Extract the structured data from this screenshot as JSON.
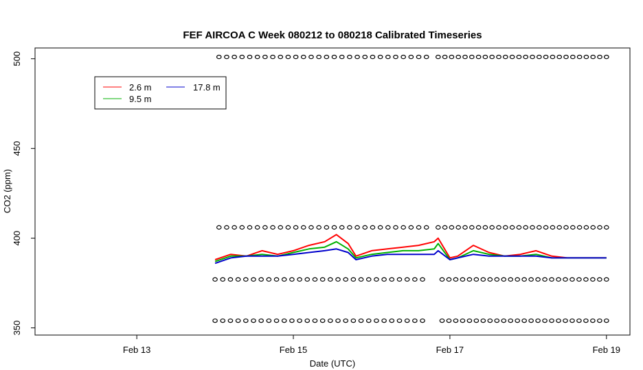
{
  "chart_data": {
    "type": "line",
    "title": "FEF AIRCOA C  Week 080212 to 080218  Calibrated Timeseries",
    "xlabel": "Date (UTC)",
    "ylabel": "CO2 (ppm)",
    "x_tick_labels": [
      "Feb 13",
      "Feb 15",
      "Feb 17",
      "Feb 19"
    ],
    "x_tick_values": [
      13,
      15,
      17,
      19
    ],
    "xlim": [
      11.7,
      19.3
    ],
    "y_tick_labels": [
      "350",
      "400",
      "450",
      "500"
    ],
    "y_tick_values": [
      350,
      400,
      450,
      500
    ],
    "ylim": [
      346,
      506
    ],
    "grid": false,
    "legend_position": "top-left",
    "series": [
      {
        "name": "2.6 m",
        "color": "#ff0000",
        "x": [
          14.0,
          14.2,
          14.4,
          14.6,
          14.8,
          15.0,
          15.2,
          15.4,
          15.55,
          15.7,
          15.8,
          16.0,
          16.2,
          16.4,
          16.6,
          16.8,
          16.85,
          17.0,
          17.1,
          17.3,
          17.5,
          17.7,
          17.9,
          18.1,
          18.3,
          18.5,
          18.7,
          18.9,
          19.0
        ],
        "y": [
          388,
          391,
          390,
          393,
          391,
          393,
          396,
          398,
          402,
          397,
          390,
          393,
          394,
          395,
          396,
          398,
          400,
          389,
          390,
          396,
          392,
          390,
          391,
          393,
          390,
          389,
          389,
          389,
          389
        ]
      },
      {
        "name": "9.5 m",
        "color": "#00b000",
        "x": [
          14.0,
          14.2,
          14.4,
          14.6,
          14.8,
          15.0,
          15.2,
          15.4,
          15.55,
          15.7,
          15.8,
          16.0,
          16.2,
          16.4,
          16.6,
          16.8,
          16.85,
          17.0,
          17.1,
          17.3,
          17.5,
          17.7,
          17.9,
          18.1,
          18.3,
          18.5,
          18.7,
          18.9,
          19.0
        ],
        "y": [
          387,
          390,
          390,
          391,
          390,
          392,
          394,
          395,
          398,
          394,
          389,
          391,
          392,
          393,
          393,
          394,
          397,
          388,
          389,
          393,
          391,
          390,
          390,
          391,
          389,
          389,
          389,
          389,
          389
        ]
      },
      {
        "name": "17.8 m",
        "color": "#0000cc",
        "x": [
          14.0,
          14.2,
          14.4,
          14.6,
          14.8,
          15.0,
          15.2,
          15.4,
          15.55,
          15.7,
          15.8,
          16.0,
          16.2,
          16.4,
          16.6,
          16.8,
          16.85,
          17.0,
          17.1,
          17.3,
          17.5,
          17.7,
          17.9,
          18.1,
          18.3,
          18.5,
          18.7,
          18.9,
          19.0
        ],
        "y": [
          386,
          389,
          390,
          390,
          390,
          391,
          392,
          393,
          394,
          392,
          388,
          390,
          391,
          391,
          391,
          391,
          393,
          388,
          389,
          391,
          390,
          390,
          390,
          390,
          389,
          389,
          389,
          389,
          389
        ]
      }
    ],
    "reference_markers": {
      "symbol": "o",
      "segments": [
        {
          "level": 501,
          "x_start": 14.05,
          "x_end": 16.7,
          "count": 28
        },
        {
          "level": 501,
          "x_start": 16.85,
          "x_end": 19.0,
          "count": 26
        },
        {
          "level": 406,
          "x_start": 14.05,
          "x_end": 16.7,
          "count": 28
        },
        {
          "level": 406,
          "x_start": 16.85,
          "x_end": 19.0,
          "count": 26
        },
        {
          "level": 377,
          "x_start": 14.0,
          "x_end": 16.65,
          "count": 28
        },
        {
          "level": 377,
          "x_start": 16.9,
          "x_end": 19.0,
          "count": 25
        },
        {
          "level": 354,
          "x_start": 14.0,
          "x_end": 16.65,
          "count": 28
        },
        {
          "level": 354,
          "x_start": 16.9,
          "x_end": 19.0,
          "count": 25
        }
      ]
    }
  }
}
